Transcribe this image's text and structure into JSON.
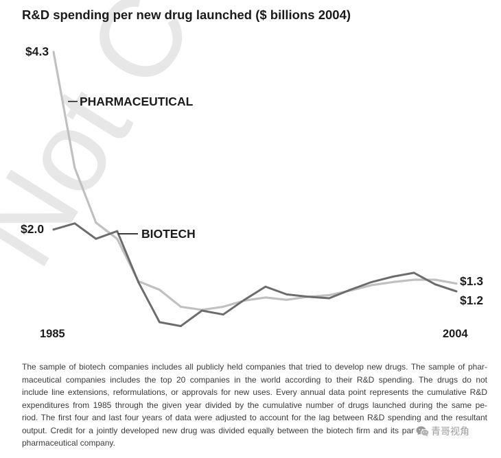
{
  "chart_data": {
    "type": "line",
    "title": "R&D spending per new drug launched ($ billions 2004)",
    "xlabel": "",
    "ylabel": "",
    "grid": false,
    "axes": "none",
    "x": [
      1985,
      1986,
      1987,
      1988,
      1989,
      1990,
      1991,
      1992,
      1993,
      1994,
      1995,
      1996,
      1997,
      1998,
      1999,
      2000,
      2001,
      2002,
      2003,
      2004
    ],
    "x_labels": [
      "1985",
      "2004"
    ],
    "series": [
      {
        "name": "PHARMACEUTICAL",
        "color": "#c0c0c0",
        "start_label": "$4.3",
        "end_label": "$1.3",
        "values": [
          4.3,
          2.8,
          2.09,
          1.88,
          1.33,
          1.22,
          1.0,
          0.96,
          1.0,
          1.08,
          1.12,
          1.09,
          1.13,
          1.15,
          1.21,
          1.28,
          1.32,
          1.35,
          1.35,
          1.3
        ]
      },
      {
        "name": "BIOTECH",
        "color": "#6c6c6c",
        "start_label": "$2.0",
        "end_label": "$1.2",
        "values": [
          2.0,
          2.08,
          1.88,
          1.98,
          1.32,
          0.8,
          0.75,
          0.95,
          0.9,
          1.09,
          1.26,
          1.16,
          1.13,
          1.11,
          1.22,
          1.32,
          1.39,
          1.44,
          1.29,
          1.2
        ]
      }
    ]
  },
  "caption": {
    "lines": [
      "The sample of biotech companies includes all publicly held companies that tried to develop new drugs. The sample of phar-",
      "maceutical companies includes the top 20 companies in the world according to their R&D spending. The drugs do not",
      "include line extensions, reformulations, or approvals for new uses. Every annual data point represents the cumulative R&D",
      "expenditures from 1985 through the given year divided by the cumulative number of drugs launched during the same pe-",
      "riod. The first four and last four years of data were adjusted to account for the lag between R&D spending and the resultant",
      "output. Credit for a jointly developed new drug was divided equally between the biotech firm and its partner",
      "pharmaceutical company."
    ]
  },
  "watermark": {
    "text": "Not C",
    "color": "#e7e7e7"
  },
  "wechat_watermark": {
    "icon": "wechat-icon",
    "label": "青哥视角"
  }
}
